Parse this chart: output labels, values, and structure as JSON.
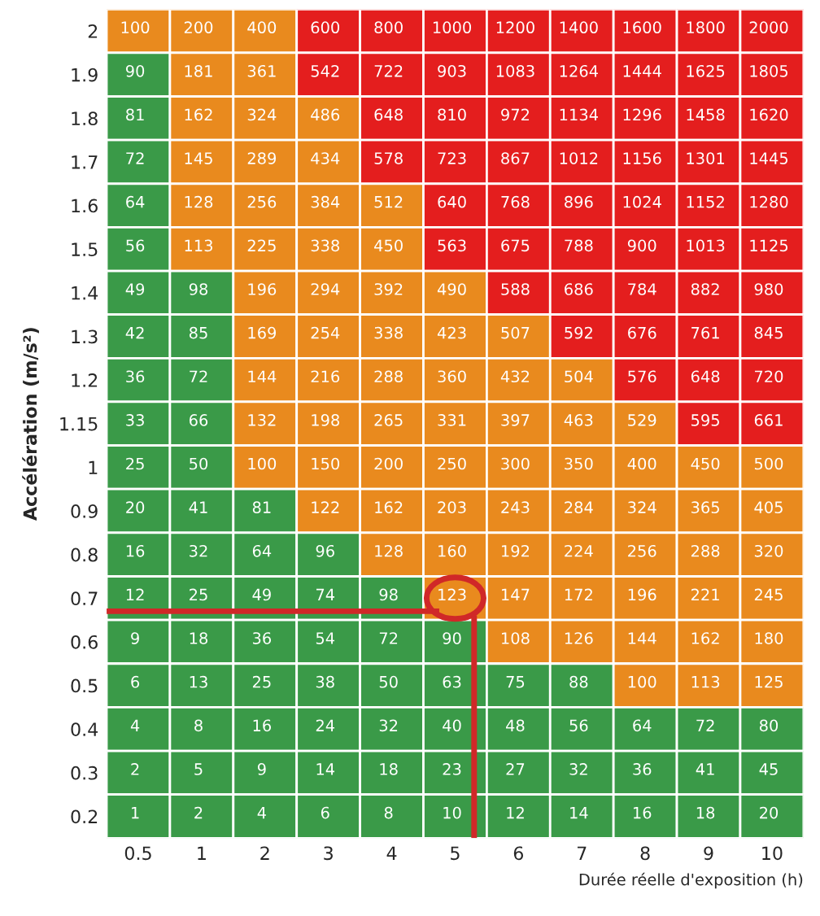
{
  "chart_data": {
    "type": "heatmap",
    "xlabel": "Durée réelle d'exposition (h)",
    "ylabel": "Accélération (m/s²)",
    "categories": [
      "0.5",
      "1",
      "2",
      "3",
      "4",
      "5",
      "6",
      "7",
      "8",
      "9",
      "10"
    ],
    "y_categories": [
      "2",
      "1.9",
      "1.8",
      "1.7",
      "1.6",
      "1.5",
      "1.4",
      "1.3",
      "1.2",
      "1.15",
      "1",
      "0.9",
      "0.8",
      "0.7",
      "0.6",
      "0.5",
      "0.4",
      "0.3",
      "0.2"
    ],
    "cells": [
      [
        100,
        200,
        400,
        600,
        800,
        1000,
        1200,
        1400,
        1600,
        1800,
        2000
      ],
      [
        90,
        181,
        361,
        542,
        722,
        903,
        1083,
        1264,
        1444,
        1625,
        1805
      ],
      [
        81,
        162,
        324,
        486,
        648,
        810,
        972,
        1134,
        1296,
        1458,
        1620
      ],
      [
        72,
        145,
        289,
        434,
        578,
        723,
        867,
        1012,
        1156,
        1301,
        1445
      ],
      [
        64,
        128,
        256,
        384,
        512,
        640,
        768,
        896,
        1024,
        1152,
        1280
      ],
      [
        56,
        113,
        225,
        338,
        450,
        563,
        675,
        788,
        900,
        1013,
        1125
      ],
      [
        49,
        98,
        196,
        294,
        392,
        490,
        588,
        686,
        784,
        882,
        980
      ],
      [
        42,
        85,
        169,
        254,
        338,
        423,
        507,
        592,
        676,
        761,
        845
      ],
      [
        36,
        72,
        144,
        216,
        288,
        360,
        432,
        504,
        576,
        648,
        720
      ],
      [
        33,
        66,
        132,
        198,
        265,
        331,
        397,
        463,
        529,
        595,
        661
      ],
      [
        25,
        50,
        100,
        150,
        200,
        250,
        300,
        350,
        400,
        450,
        500
      ],
      [
        20,
        41,
        81,
        122,
        162,
        203,
        243,
        284,
        324,
        365,
        405
      ],
      [
        16,
        32,
        64,
        96,
        128,
        160,
        192,
        224,
        256,
        288,
        320
      ],
      [
        12,
        25,
        49,
        74,
        98,
        123,
        147,
        172,
        196,
        221,
        245
      ],
      [
        9,
        18,
        36,
        54,
        72,
        90,
        108,
        126,
        144,
        162,
        180
      ],
      [
        6,
        13,
        25,
        38,
        50,
        63,
        75,
        88,
        100,
        113,
        125
      ],
      [
        4,
        8,
        16,
        24,
        32,
        40,
        48,
        56,
        64,
        72,
        80
      ],
      [
        2,
        5,
        9,
        14,
        18,
        23,
        27,
        32,
        36,
        41,
        45
      ],
      [
        1,
        2,
        4,
        6,
        8,
        10,
        12,
        14,
        16,
        18,
        20
      ]
    ],
    "colors": [
      [
        "#e98a1e",
        "#e98a1e",
        "#e98a1e",
        "#e41e1e",
        "#e41e1e",
        "#e41e1e",
        "#e41e1e",
        "#e41e1e",
        "#e41e1e",
        "#e41e1e",
        "#e41e1e"
      ],
      [
        "#3a9a48",
        "#e98a1e",
        "#e98a1e",
        "#e41e1e",
        "#e41e1e",
        "#e41e1e",
        "#e41e1e",
        "#e41e1e",
        "#e41e1e",
        "#e41e1e",
        "#e41e1e"
      ],
      [
        "#3a9a48",
        "#e98a1e",
        "#e98a1e",
        "#e98a1e",
        "#e41e1e",
        "#e41e1e",
        "#e41e1e",
        "#e41e1e",
        "#e41e1e",
        "#e41e1e",
        "#e41e1e"
      ],
      [
        "#3a9a48",
        "#e98a1e",
        "#e98a1e",
        "#e98a1e",
        "#e41e1e",
        "#e41e1e",
        "#e41e1e",
        "#e41e1e",
        "#e41e1e",
        "#e41e1e",
        "#e41e1e"
      ],
      [
        "#3a9a48",
        "#e98a1e",
        "#e98a1e",
        "#e98a1e",
        "#e98a1e",
        "#e41e1e",
        "#e41e1e",
        "#e41e1e",
        "#e41e1e",
        "#e41e1e",
        "#e41e1e"
      ],
      [
        "#3a9a48",
        "#e98a1e",
        "#e98a1e",
        "#e98a1e",
        "#e98a1e",
        "#e41e1e",
        "#e41e1e",
        "#e41e1e",
        "#e41e1e",
        "#e41e1e",
        "#e41e1e"
      ],
      [
        "#3a9a48",
        "#3a9a48",
        "#e98a1e",
        "#e98a1e",
        "#e98a1e",
        "#e98a1e",
        "#e41e1e",
        "#e41e1e",
        "#e41e1e",
        "#e41e1e",
        "#e41e1e"
      ],
      [
        "#3a9a48",
        "#3a9a48",
        "#e98a1e",
        "#e98a1e",
        "#e98a1e",
        "#e98a1e",
        "#e98a1e",
        "#e41e1e",
        "#e41e1e",
        "#e41e1e",
        "#e41e1e"
      ],
      [
        "#3a9a48",
        "#3a9a48",
        "#e98a1e",
        "#e98a1e",
        "#e98a1e",
        "#e98a1e",
        "#e98a1e",
        "#e98a1e",
        "#e41e1e",
        "#e41e1e",
        "#e41e1e"
      ],
      [
        "#3a9a48",
        "#3a9a48",
        "#e98a1e",
        "#e98a1e",
        "#e98a1e",
        "#e98a1e",
        "#e98a1e",
        "#e98a1e",
        "#e98a1e",
        "#e41e1e",
        "#e41e1e"
      ],
      [
        "#3a9a48",
        "#3a9a48",
        "#e98a1e",
        "#e98a1e",
        "#e98a1e",
        "#e98a1e",
        "#e98a1e",
        "#e98a1e",
        "#e98a1e",
        "#e98a1e",
        "#e98a1e"
      ],
      [
        "#3a9a48",
        "#3a9a48",
        "#3a9a48",
        "#e98a1e",
        "#e98a1e",
        "#e98a1e",
        "#e98a1e",
        "#e98a1e",
        "#e98a1e",
        "#e98a1e",
        "#e98a1e"
      ],
      [
        "#3a9a48",
        "#3a9a48",
        "#3a9a48",
        "#3a9a48",
        "#e98a1e",
        "#e98a1e",
        "#e98a1e",
        "#e98a1e",
        "#e98a1e",
        "#e98a1e",
        "#e98a1e"
      ],
      [
        "#3a9a48",
        "#3a9a48",
        "#3a9a48",
        "#3a9a48",
        "#3a9a48",
        "#e98a1e",
        "#e98a1e",
        "#e98a1e",
        "#e98a1e",
        "#e98a1e",
        "#e98a1e"
      ],
      [
        "#3a9a48",
        "#3a9a48",
        "#3a9a48",
        "#3a9a48",
        "#3a9a48",
        "#3a9a48",
        "#e98a1e",
        "#e98a1e",
        "#e98a1e",
        "#e98a1e",
        "#e98a1e"
      ],
      [
        "#3a9a48",
        "#3a9a48",
        "#3a9a48",
        "#3a9a48",
        "#3a9a48",
        "#3a9a48",
        "#3a9a48",
        "#3a9a48",
        "#e98a1e",
        "#e98a1e",
        "#e98a1e"
      ],
      [
        "#3a9a48",
        "#3a9a48",
        "#3a9a48",
        "#3a9a48",
        "#3a9a48",
        "#3a9a48",
        "#3a9a48",
        "#3a9a48",
        "#3a9a48",
        "#3a9a48",
        "#3a9a48"
      ],
      [
        "#3a9a48",
        "#3a9a48",
        "#3a9a48",
        "#3a9a48",
        "#3a9a48",
        "#3a9a48",
        "#3a9a48",
        "#3a9a48",
        "#3a9a48",
        "#3a9a48",
        "#3a9a48"
      ],
      [
        "#3a9a48",
        "#3a9a48",
        "#3a9a48",
        "#3a9a48",
        "#3a9a48",
        "#3a9a48",
        "#3a9a48",
        "#3a9a48",
        "#3a9a48",
        "#3a9a48",
        "#3a9a48"
      ]
    ],
    "data_labels": true,
    "ref_lines": [
      {
        "axis": "y",
        "value": "0.7",
        "color": "#d02828"
      },
      {
        "axis": "x",
        "value": "5",
        "color": "#d02828"
      }
    ]
  }
}
